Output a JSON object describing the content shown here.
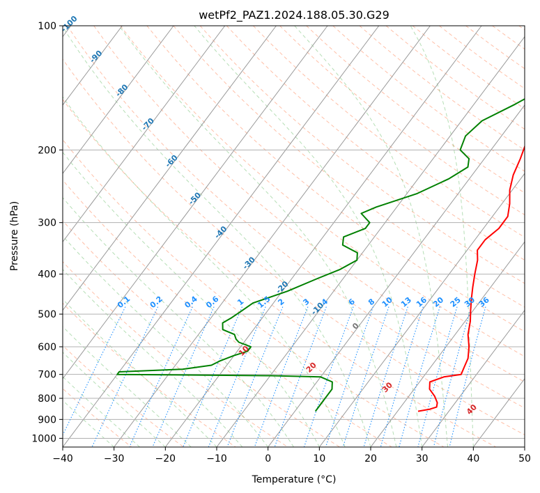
{
  "chart_data": {
    "type": "line",
    "title": "wetPf2_PAZ1.2024.188.05.30.G29",
    "xlabel": "Temperature (°C)",
    "ylabel": "Pressure (hPa)",
    "xlim": [
      -40,
      50
    ],
    "ylim_pressure": [
      1050,
      100
    ],
    "y_scale": "log",
    "grid": true,
    "x_ticks": [
      "−40",
      "−30",
      "−20",
      "−10",
      "0",
      "10",
      "20",
      "30",
      "40",
      "50"
    ],
    "y_ticks": [
      "100",
      "200",
      "300",
      "400",
      "500",
      "600",
      "700",
      "800",
      "900",
      "1000"
    ],
    "colors": {
      "temperature": "#ff0000",
      "dewpoint": "#008000",
      "isotherm": "#999999",
      "dry_adiabat": "#ff7f50",
      "moist_adiabat": "#2ca02c",
      "mixing_ratio": "#1e90ff",
      "isotherm_label": "#1f77b4",
      "adiabat_label": "#d62728"
    },
    "series": [
      {
        "key": "temperature",
        "points": [
          [
            4.2,
            100
          ],
          [
            2.5,
            110
          ],
          [
            0.0,
            125
          ],
          [
            0.0,
            135
          ],
          [
            2.0,
            145
          ],
          [
            2.5,
            155
          ],
          [
            3.0,
            165
          ],
          [
            4.5,
            180
          ],
          [
            6.0,
            195
          ],
          [
            7.0,
            210
          ],
          [
            8.0,
            230
          ],
          [
            9.5,
            250
          ],
          [
            11.5,
            270
          ],
          [
            13.0,
            290
          ],
          [
            13.0,
            310
          ],
          [
            12.0,
            330
          ],
          [
            12.0,
            350
          ],
          [
            13.5,
            370
          ],
          [
            15.0,
            400
          ],
          [
            16.5,
            430
          ],
          [
            18.0,
            460
          ],
          [
            19.5,
            490
          ],
          [
            21.0,
            520
          ],
          [
            22.5,
            560
          ],
          [
            24.5,
            600
          ],
          [
            26.0,
            640
          ],
          [
            26.5,
            670
          ],
          [
            27.0,
            700
          ],
          [
            24.0,
            710
          ],
          [
            22.0,
            730
          ],
          [
            23.0,
            760
          ],
          [
            25.0,
            790
          ],
          [
            26.5,
            820
          ],
          [
            27.0,
            840
          ],
          [
            26.0,
            850
          ],
          [
            24.0,
            860
          ]
        ]
      },
      {
        "key": "dewpoint",
        "points": [
          [
            3.0,
            100
          ],
          [
            1.0,
            110
          ],
          [
            -1.0,
            125
          ],
          [
            -1.0,
            135
          ],
          [
            1.0,
            143
          ],
          [
            -2.0,
            155
          ],
          [
            -6.0,
            170
          ],
          [
            -7.0,
            185
          ],
          [
            -6.0,
            200
          ],
          [
            -3.0,
            210
          ],
          [
            -2.0,
            220
          ],
          [
            -4.0,
            235
          ],
          [
            -8.0,
            255
          ],
          [
            -14.0,
            275
          ],
          [
            -16.0,
            285
          ],
          [
            -13.0,
            300
          ],
          [
            -13.0,
            310
          ],
          [
            -16.0,
            325
          ],
          [
            -15.0,
            340
          ],
          [
            -11.0,
            355
          ],
          [
            -10.0,
            370
          ],
          [
            -12.0,
            390
          ],
          [
            -15.0,
            410
          ],
          [
            -19.0,
            440
          ],
          [
            -24.0,
            470
          ],
          [
            -25.0,
            490
          ],
          [
            -26.0,
            510
          ],
          [
            -27.0,
            525
          ],
          [
            -26.0,
            545
          ],
          [
            -23.0,
            560
          ],
          [
            -22.0,
            575
          ],
          [
            -21.0,
            585
          ],
          [
            -18.0,
            600
          ],
          [
            -18.0,
            615
          ],
          [
            -20.0,
            630
          ],
          [
            -22.0,
            650
          ],
          [
            -23.0,
            665
          ],
          [
            -28.0,
            680
          ],
          [
            -40.0,
            690
          ],
          [
            -40.0,
            700
          ],
          [
            -10.0,
            705
          ],
          [
            0.0,
            710
          ],
          [
            3.0,
            730
          ],
          [
            4.0,
            760
          ],
          [
            4.0,
            800
          ],
          [
            4.0,
            860
          ]
        ]
      }
    ],
    "mixing_ratio_lines": [
      0.1,
      0.2,
      0.4,
      0.6,
      1,
      1.5,
      2,
      3,
      4,
      6,
      8,
      10,
      13,
      16,
      20,
      25,
      30,
      36
    ],
    "mixing_ratio_labels": [
      "0.1",
      "0.2",
      "0.4",
      "0.6",
      "1",
      "1.5",
      "2",
      "3",
      "4",
      "6",
      "8",
      "10",
      "13",
      "16",
      "20",
      "25",
      "30",
      "36"
    ],
    "isotherm_labels": [
      "-100",
      "-90",
      "-80",
      "-70",
      "-60",
      "-50",
      "-40",
      "-30",
      "-20",
      "-10",
      "0"
    ],
    "dry_adiabat_labels": [
      "10",
      "20",
      "30",
      "40"
    ]
  }
}
